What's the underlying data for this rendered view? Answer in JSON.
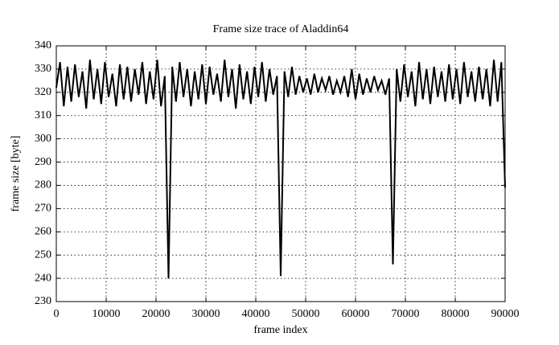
{
  "chart_data": {
    "type": "line",
    "title": "Frame size trace of Aladdin64",
    "x_label": "frame index",
    "y_label": "frame size [byte]",
    "xlim": [
      0,
      90000
    ],
    "ylim": [
      230,
      340
    ],
    "xticks": [
      0,
      10000,
      20000,
      30000,
      40000,
      50000,
      60000,
      70000,
      80000,
      90000
    ],
    "yticks": [
      230,
      240,
      250,
      260,
      270,
      280,
      290,
      300,
      310,
      320,
      330,
      340
    ],
    "grid": true,
    "series": [
      {
        "color": "#000000",
        "x": [
          0,
          750,
          1500,
          2250,
          3000,
          3750,
          4500,
          5250,
          6000,
          6750,
          7500,
          8250,
          9000,
          9750,
          10500,
          11250,
          12000,
          12750,
          13500,
          14250,
          15000,
          15750,
          16500,
          17250,
          18000,
          18750,
          19500,
          20250,
          21000,
          21750,
          22500,
          23250,
          24000,
          24750,
          25500,
          26250,
          27000,
          27750,
          28500,
          29250,
          30000,
          30750,
          31500,
          32250,
          33000,
          33750,
          34500,
          35250,
          36000,
          36750,
          37500,
          38250,
          39000,
          39750,
          40500,
          41250,
          42000,
          42750,
          43500,
          44250,
          45000,
          45750,
          46500,
          47250,
          48000,
          48750,
          49500,
          50250,
          51000,
          51750,
          52500,
          53250,
          54000,
          54750,
          55500,
          56250,
          57000,
          57750,
          58500,
          59250,
          60000,
          60750,
          61500,
          62250,
          63000,
          63750,
          64500,
          65250,
          66000,
          66750,
          67500,
          68250,
          69000,
          69750,
          70500,
          71250,
          72000,
          72750,
          73500,
          74250,
          75000,
          75750,
          76500,
          77250,
          78000,
          78750,
          79500,
          80250,
          81000,
          81750,
          82500,
          83250,
          84000,
          84750,
          85500,
          86250,
          87000,
          87750,
          88500,
          89250,
          90000
        ],
        "values": [
          322,
          333,
          314,
          331,
          316,
          332,
          318,
          329,
          313,
          334,
          317,
          330,
          315,
          333,
          318,
          328,
          314,
          332,
          317,
          331,
          316,
          330,
          319,
          333,
          315,
          329,
          317,
          334,
          314,
          327,
          240,
          331,
          316,
          333,
          318,
          330,
          314,
          329,
          317,
          332,
          315,
          331,
          319,
          328,
          316,
          334,
          318,
          330,
          313,
          332,
          317,
          329,
          315,
          331,
          318,
          333,
          316,
          330,
          319,
          327,
          241,
          329,
          318,
          331,
          319,
          327,
          320,
          326,
          319,
          328,
          320,
          326,
          321,
          327,
          319,
          325,
          320,
          327,
          318,
          330,
          317,
          328,
          319,
          326,
          320,
          327,
          321,
          325,
          319,
          326,
          246,
          330,
          316,
          332,
          318,
          329,
          314,
          333,
          317,
          330,
          315,
          331,
          318,
          329,
          316,
          332,
          317,
          330,
          315,
          333,
          318,
          329,
          316,
          331,
          317,
          330,
          314,
          334,
          316,
          333,
          279
        ]
      }
    ]
  }
}
